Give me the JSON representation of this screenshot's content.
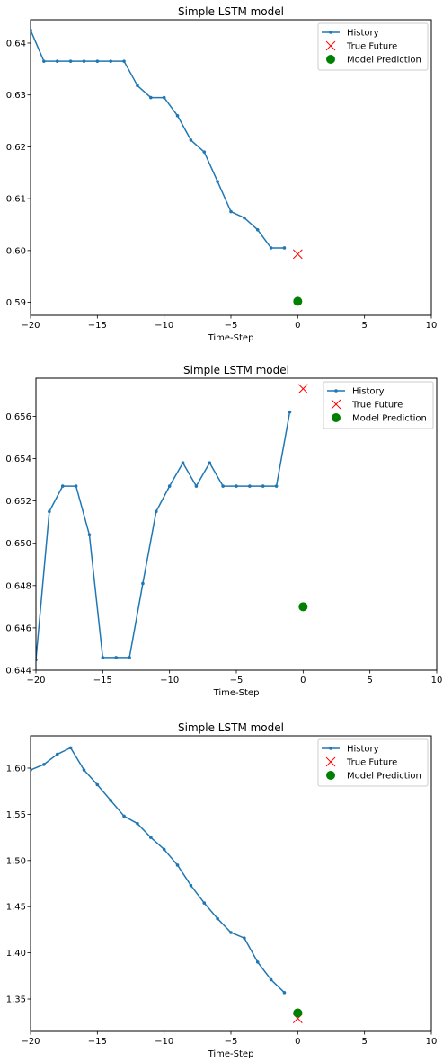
{
  "colors": {
    "history": "#1f77b4",
    "true_future": "#ff0000",
    "prediction": "#008000",
    "axes": "#000000",
    "legend_border": "#cccccc"
  },
  "chart_data": [
    {
      "type": "line",
      "title": "Simple LSTM model",
      "xlabel": "Time-Step",
      "ylabel": "",
      "xlim": [
        -20,
        10
      ],
      "ylim": [
        0.5875,
        0.6445
      ],
      "xticks": [
        -20,
        -15,
        -10,
        -5,
        0,
        5,
        10
      ],
      "xtick_labels": [
        "−20",
        "−15",
        "−10",
        "−5",
        "0",
        "5",
        "10"
      ],
      "yticks": [
        0.59,
        0.6,
        0.61,
        0.62,
        0.63,
        0.64
      ],
      "ytick_labels": [
        "0.59",
        "0.60",
        "0.61",
        "0.62",
        "0.63",
        "0.64"
      ],
      "grid": false,
      "legend_position": "top-right",
      "series": [
        {
          "name": "History",
          "marker": "point-line",
          "x": [
            -20,
            -19,
            -18,
            -17,
            -16,
            -15,
            -14,
            -13,
            -12,
            -11,
            -10,
            -9,
            -8,
            -7,
            -6,
            -5,
            -4,
            -3,
            -2,
            -1
          ],
          "y": [
            0.6425,
            0.6365,
            0.6365,
            0.6365,
            0.6365,
            0.6365,
            0.6365,
            0.6365,
            0.6318,
            0.6295,
            0.6295,
            0.626,
            0.6213,
            0.619,
            0.6133,
            0.6075,
            0.6063,
            0.604,
            0.6005,
            0.6005
          ]
        },
        {
          "name": "True Future",
          "marker": "x",
          "x": [
            0
          ],
          "y": [
            0.5993
          ]
        },
        {
          "name": "Model Prediction",
          "marker": "dot",
          "x": [
            0
          ],
          "y": [
            0.5902
          ]
        }
      ]
    },
    {
      "type": "line",
      "title": "Simple LSTM model",
      "xlabel": "Time-Step",
      "ylabel": "",
      "xlim": [
        -20,
        10
      ],
      "ylim": [
        0.644,
        0.6578
      ],
      "xticks": [
        -20,
        -15,
        -10,
        -5,
        0,
        5,
        10
      ],
      "xtick_labels": [
        "−20",
        "−15",
        "−10",
        "−5",
        "0",
        "5",
        "10"
      ],
      "yticks": [
        0.644,
        0.646,
        0.648,
        0.65,
        0.652,
        0.654,
        0.656
      ],
      "ytick_labels": [
        "0.644",
        "0.646",
        "0.648",
        "0.650",
        "0.652",
        "0.654",
        "0.656"
      ],
      "grid": false,
      "legend_position": "top-right",
      "series": [
        {
          "name": "History",
          "marker": "point-line",
          "x": [
            -20,
            -19,
            -18,
            -17,
            -16,
            -15,
            -14,
            -13,
            -12,
            -11,
            -10,
            -9,
            -8,
            -7,
            -6,
            -5,
            -4,
            -3,
            -2,
            -1
          ],
          "y": [
            0.6445,
            0.6515,
            0.6527,
            0.6527,
            0.6504,
            0.6446,
            0.6446,
            0.6446,
            0.6481,
            0.6515,
            0.6527,
            0.6538,
            0.6527,
            0.6538,
            0.6527,
            0.6527,
            0.6527,
            0.6527,
            0.6527,
            0.6562
          ]
        },
        {
          "name": "True Future",
          "marker": "x",
          "x": [
            0
          ],
          "y": [
            0.6573
          ]
        },
        {
          "name": "Model Prediction",
          "marker": "dot",
          "x": [
            0
          ],
          "y": [
            0.647
          ]
        }
      ]
    },
    {
      "type": "line",
      "title": "Simple LSTM model",
      "xlabel": "Time-Step",
      "ylabel": "",
      "xlim": [
        -20,
        10
      ],
      "ylim": [
        1.315,
        1.635
      ],
      "xticks": [
        -20,
        -15,
        -10,
        -5,
        0,
        5,
        10
      ],
      "xtick_labels": [
        "−20",
        "−15",
        "−10",
        "−5",
        "0",
        "5",
        "10"
      ],
      "yticks": [
        1.35,
        1.4,
        1.45,
        1.5,
        1.55,
        1.6
      ],
      "ytick_labels": [
        "1.35",
        "1.40",
        "1.45",
        "1.50",
        "1.55",
        "1.60"
      ],
      "grid": false,
      "legend_position": "top-right",
      "series": [
        {
          "name": "History",
          "marker": "point-line",
          "x": [
            -20,
            -19,
            -18,
            -17,
            -16,
            -15,
            -14,
            -13,
            -12,
            -11,
            -10,
            -9,
            -8,
            -7,
            -6,
            -5,
            -4,
            -3,
            -2,
            -1
          ],
          "y": [
            1.598,
            1.604,
            1.615,
            1.622,
            1.598,
            1.582,
            1.565,
            1.548,
            1.54,
            1.525,
            1.512,
            1.495,
            1.473,
            1.454,
            1.437,
            1.422,
            1.416,
            1.39,
            1.371,
            1.357
          ]
        },
        {
          "name": "True Future",
          "marker": "x",
          "x": [
            0
          ],
          "y": [
            1.329
          ]
        },
        {
          "name": "Model Prediction",
          "marker": "dot",
          "x": [
            0
          ],
          "y": [
            1.335
          ]
        }
      ]
    }
  ]
}
